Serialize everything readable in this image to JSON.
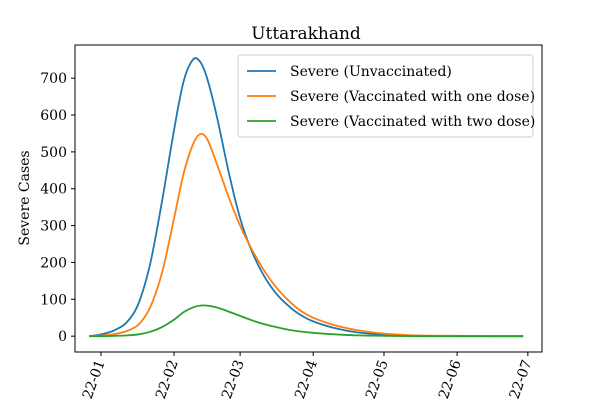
{
  "chart_data": {
    "type": "line",
    "title": "Uttarakhand",
    "xlabel": "",
    "ylabel": "Severe Cases",
    "x_ticks": [
      "2022-01",
      "2022-02",
      "2022-03",
      "2022-04",
      "2022-05",
      "2022-06",
      "2022-07"
    ],
    "x_tick_labels": [
      "22-01",
      "22-02",
      "22-03",
      "22-04",
      "22-05",
      "22-06",
      "22-07"
    ],
    "xlim": [
      "2021-12-21",
      "2022-07-07"
    ],
    "ylim": [
      -43,
      790
    ],
    "y_ticks": [
      0,
      100,
      200,
      300,
      400,
      500,
      600,
      700
    ],
    "grid": false,
    "legend_position": "upper right",
    "series": [
      {
        "name": "Severe (Unvaccinated)",
        "color": "#1f77b4",
        "x": [
          "2021-12-27",
          "2022-01-02",
          "2022-01-07",
          "2022-01-12",
          "2022-01-17",
          "2022-01-22",
          "2022-01-27",
          "2022-02-01",
          "2022-02-05",
          "2022-02-09",
          "2022-02-12",
          "2022-02-15",
          "2022-02-19",
          "2022-02-24",
          "2022-03-01",
          "2022-03-06",
          "2022-03-11",
          "2022-03-16",
          "2022-03-21",
          "2022-03-26",
          "2022-04-01",
          "2022-04-10",
          "2022-04-20",
          "2022-05-01",
          "2022-05-15",
          "2022-06-01",
          "2022-06-15",
          "2022-06-29"
        ],
        "y": [
          0,
          6,
          17,
          38,
          90,
          200,
          370,
          560,
          690,
          750,
          745,
          700,
          600,
          450,
          320,
          230,
          165,
          118,
          85,
          60,
          40,
          22,
          10,
          4,
          1,
          0,
          0,
          0
        ]
      },
      {
        "name": "Severe (Vaccinated with one dose)",
        "color": "#ff7f0e",
        "x": [
          "2021-12-27",
          "2022-01-02",
          "2022-01-07",
          "2022-01-12",
          "2022-01-17",
          "2022-01-22",
          "2022-01-27",
          "2022-02-01",
          "2022-02-05",
          "2022-02-09",
          "2022-02-12",
          "2022-02-15",
          "2022-02-19",
          "2022-02-24",
          "2022-03-01",
          "2022-03-06",
          "2022-03-11",
          "2022-03-16",
          "2022-03-21",
          "2022-03-26",
          "2022-04-01",
          "2022-04-10",
          "2022-04-20",
          "2022-05-01",
          "2022-05-15",
          "2022-06-01",
          "2022-06-15",
          "2022-06-29"
        ],
        "y": [
          0,
          2,
          6,
          14,
          32,
          80,
          175,
          320,
          440,
          520,
          548,
          535,
          470,
          380,
          300,
          235,
          180,
          135,
          100,
          72,
          50,
          30,
          16,
          7,
          2,
          1,
          0,
          0
        ]
      },
      {
        "name": "Severe (Vaccinated with two dose)",
        "color": "#2ca02c",
        "x": [
          "2021-12-27",
          "2022-01-02",
          "2022-01-07",
          "2022-01-12",
          "2022-01-17",
          "2022-01-22",
          "2022-01-27",
          "2022-02-01",
          "2022-02-05",
          "2022-02-09",
          "2022-02-12",
          "2022-02-15",
          "2022-02-19",
          "2022-02-24",
          "2022-03-01",
          "2022-03-06",
          "2022-03-11",
          "2022-03-16",
          "2022-03-21",
          "2022-03-26",
          "2022-04-01",
          "2022-04-10",
          "2022-04-20",
          "2022-05-01",
          "2022-05-15",
          "2022-06-01",
          "2022-06-15",
          "2022-06-29"
        ],
        "y": [
          0,
          0,
          1,
          2,
          5,
          12,
          25,
          45,
          65,
          78,
          83,
          83,
          78,
          67,
          55,
          43,
          33,
          25,
          18,
          13,
          9,
          5,
          2,
          1,
          0,
          0,
          0,
          0
        ]
      }
    ]
  }
}
